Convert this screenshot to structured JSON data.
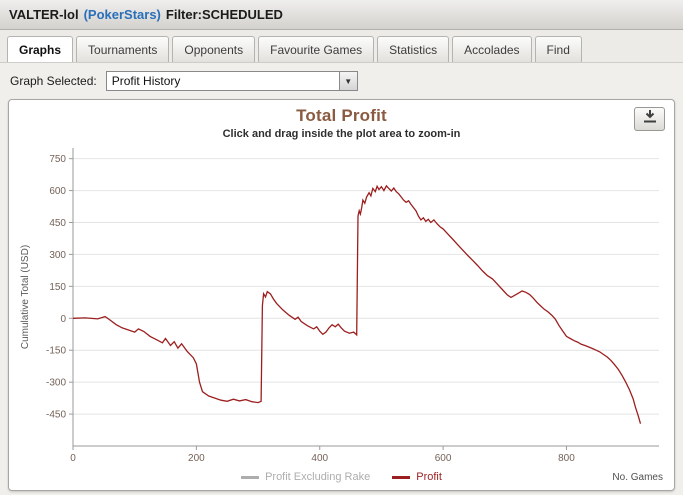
{
  "header": {
    "player": "VALTER-lol",
    "site": "(PokerStars)",
    "filter": "Filter:SCHEDULED"
  },
  "tabs": [
    {
      "label": "Graphs",
      "active": true
    },
    {
      "label": "Tournaments",
      "active": false
    },
    {
      "label": "Opponents",
      "active": false
    },
    {
      "label": "Favourite Games",
      "active": false
    },
    {
      "label": "Statistics",
      "active": false
    },
    {
      "label": "Accolades",
      "active": false
    },
    {
      "label": "Find",
      "active": false
    }
  ],
  "graph_selector": {
    "label": "Graph Selected:",
    "value": "Profit History",
    "dropdown_icon": "combo-arrow-down"
  },
  "toolbar": {
    "download_icon": "download-icon"
  },
  "colors": {
    "title": "#8a5a41",
    "site_link": "#2a6fba",
    "tick_labels": "#756258",
    "axis": "#9a9a9a",
    "grid": "#e4e4e4"
  },
  "chart_data": {
    "type": "line",
    "title": "Total Profit",
    "subtitle": "Click and drag inside the plot area to zoom-in",
    "ylabel": "Cumulative Total (USD)",
    "xlabel": "No. Games",
    "xlim": [
      0,
      950
    ],
    "ylim": [
      -600,
      800
    ],
    "yticks": [
      750,
      600,
      450,
      300,
      150,
      0,
      -150,
      -300,
      -450
    ],
    "xticks": [
      0,
      200,
      400,
      600,
      800
    ],
    "grid": true,
    "legend_position": "bottom",
    "series": [
      {
        "name": "Profit Excluding Rake",
        "color": "#adadad",
        "visible": false,
        "points": []
      },
      {
        "name": "Profit",
        "color": "#9c1f1f",
        "visible": true,
        "points": [
          [
            0,
            0
          ],
          [
            20,
            2
          ],
          [
            40,
            -3
          ],
          [
            52,
            8
          ],
          [
            60,
            -8
          ],
          [
            70,
            -30
          ],
          [
            80,
            -45
          ],
          [
            90,
            -55
          ],
          [
            100,
            -65
          ],
          [
            106,
            -50
          ],
          [
            115,
            -62
          ],
          [
            125,
            -85
          ],
          [
            135,
            -100
          ],
          [
            145,
            -115
          ],
          [
            150,
            -95
          ],
          [
            158,
            -128
          ],
          [
            164,
            -110
          ],
          [
            170,
            -140
          ],
          [
            176,
            -120
          ],
          [
            185,
            -155
          ],
          [
            195,
            -185
          ],
          [
            200,
            -215
          ],
          [
            205,
            -300
          ],
          [
            210,
            -345
          ],
          [
            220,
            -365
          ],
          [
            230,
            -375
          ],
          [
            240,
            -385
          ],
          [
            250,
            -390
          ],
          [
            260,
            -380
          ],
          [
            270,
            -388
          ],
          [
            280,
            -382
          ],
          [
            290,
            -392
          ],
          [
            300,
            -396
          ],
          [
            305,
            -390
          ],
          [
            307,
            60
          ],
          [
            309,
            115
          ],
          [
            312,
            100
          ],
          [
            315,
            125
          ],
          [
            320,
            115
          ],
          [
            325,
            90
          ],
          [
            330,
            70
          ],
          [
            340,
            40
          ],
          [
            350,
            15
          ],
          [
            360,
            -5
          ],
          [
            365,
            5
          ],
          [
            370,
            -15
          ],
          [
            380,
            -35
          ],
          [
            390,
            -50
          ],
          [
            395,
            -40
          ],
          [
            400,
            -60
          ],
          [
            405,
            -75
          ],
          [
            410,
            -65
          ],
          [
            415,
            -45
          ],
          [
            420,
            -30
          ],
          [
            425,
            -40
          ],
          [
            430,
            -28
          ],
          [
            435,
            -45
          ],
          [
            440,
            -60
          ],
          [
            448,
            -70
          ],
          [
            455,
            -65
          ],
          [
            460,
            -78
          ],
          [
            462,
            480
          ],
          [
            464,
            505
          ],
          [
            466,
            490
          ],
          [
            468,
            520
          ],
          [
            470,
            555
          ],
          [
            473,
            540
          ],
          [
            476,
            570
          ],
          [
            480,
            590
          ],
          [
            483,
            575
          ],
          [
            486,
            610
          ],
          [
            490,
            595
          ],
          [
            493,
            620
          ],
          [
            496,
            605
          ],
          [
            500,
            618
          ],
          [
            504,
            600
          ],
          [
            508,
            622
          ],
          [
            512,
            610
          ],
          [
            516,
            598
          ],
          [
            520,
            612
          ],
          [
            524,
            595
          ],
          [
            528,
            585
          ],
          [
            532,
            570
          ],
          [
            536,
            555
          ],
          [
            540,
            545
          ],
          [
            544,
            552
          ],
          [
            548,
            535
          ],
          [
            552,
            520
          ],
          [
            556,
            505
          ],
          [
            560,
            480
          ],
          [
            564,
            462
          ],
          [
            568,
            472
          ],
          [
            572,
            455
          ],
          [
            576,
            465
          ],
          [
            580,
            450
          ],
          [
            585,
            462
          ],
          [
            590,
            445
          ],
          [
            595,
            430
          ],
          [
            600,
            420
          ],
          [
            608,
            395
          ],
          [
            616,
            370
          ],
          [
            624,
            345
          ],
          [
            632,
            320
          ],
          [
            640,
            295
          ],
          [
            648,
            272
          ],
          [
            656,
            248
          ],
          [
            664,
            222
          ],
          [
            672,
            200
          ],
          [
            680,
            185
          ],
          [
            688,
            160
          ],
          [
            696,
            135
          ],
          [
            704,
            110
          ],
          [
            710,
            98
          ],
          [
            716,
            108
          ],
          [
            722,
            118
          ],
          [
            728,
            128
          ],
          [
            734,
            122
          ],
          [
            740,
            112
          ],
          [
            746,
            95
          ],
          [
            752,
            75
          ],
          [
            758,
            58
          ],
          [
            764,
            42
          ],
          [
            770,
            30
          ],
          [
            776,
            15
          ],
          [
            782,
            -5
          ],
          [
            788,
            -35
          ],
          [
            794,
            -60
          ],
          [
            800,
            -85
          ],
          [
            806,
            -95
          ],
          [
            812,
            -105
          ],
          [
            818,
            -112
          ],
          [
            824,
            -122
          ],
          [
            830,
            -128
          ],
          [
            836,
            -135
          ],
          [
            842,
            -142
          ],
          [
            848,
            -150
          ],
          [
            854,
            -158
          ],
          [
            860,
            -170
          ],
          [
            866,
            -182
          ],
          [
            872,
            -198
          ],
          [
            878,
            -218
          ],
          [
            884,
            -240
          ],
          [
            890,
            -268
          ],
          [
            896,
            -300
          ],
          [
            902,
            -335
          ],
          [
            908,
            -378
          ],
          [
            912,
            -420
          ],
          [
            916,
            -455
          ],
          [
            920,
            -495
          ]
        ]
      }
    ]
  }
}
